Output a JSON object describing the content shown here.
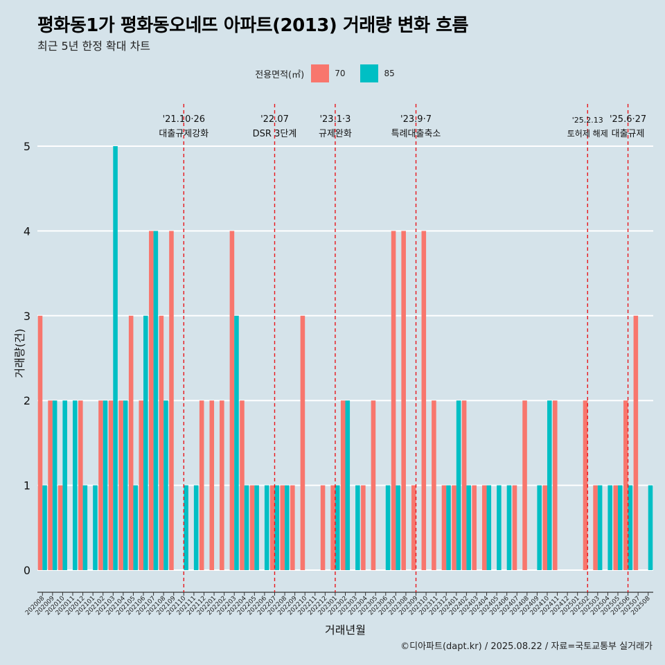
{
  "header": {
    "title": "평화동1가 평화동오네뜨 아파트(2013) 거래량 변화 흐름",
    "subtitle": "최근 5년 한정 확대 차트"
  },
  "legend": {
    "title": "전용면적(㎡)",
    "items": [
      {
        "label": "70",
        "color": "#f8766d"
      },
      {
        "label": "85",
        "color": "#00bfc4"
      }
    ]
  },
  "caption": "©디아파트(dapt.kr) / 2025.08.22 / 자료=국토교통부 실거래가",
  "chart_data": {
    "type": "bar",
    "title": "평화동1가 평화동오네뜨 아파트(2013) 거래량 변화 흐름",
    "xlabel": "거래년월",
    "ylabel": "거래량(건)",
    "ylim": [
      0,
      5
    ],
    "yticks": [
      0,
      1,
      2,
      3,
      4,
      5
    ],
    "categories": [
      "202008",
      "202009",
      "202010",
      "202011",
      "202012",
      "202101",
      "202102",
      "202103",
      "202104",
      "202105",
      "202106",
      "202107",
      "202108",
      "202109",
      "202110",
      "202111",
      "202112",
      "202201",
      "202202",
      "202203",
      "202204",
      "202205",
      "202206",
      "202207",
      "202208",
      "202209",
      "202210",
      "202211",
      "202212",
      "202301",
      "202302",
      "202303",
      "202304",
      "202305",
      "202306",
      "202307",
      "202308",
      "202309",
      "202310",
      "202311",
      "202312",
      "202401",
      "202402",
      "202403",
      "202404",
      "202405",
      "202406",
      "202407",
      "202408",
      "202409",
      "202410",
      "202411",
      "202412",
      "202501",
      "202502",
      "202503",
      "202504",
      "202505",
      "202506",
      "202507",
      "202508"
    ],
    "series": [
      {
        "name": "70",
        "color": "#f8766d",
        "values": [
          3,
          2,
          1,
          0,
          2,
          0,
          2,
          2,
          2,
          3,
          2,
          4,
          3,
          4,
          0,
          0,
          2,
          2,
          2,
          4,
          2,
          1,
          0,
          1,
          1,
          1,
          3,
          0,
          1,
          1,
          2,
          0,
          1,
          2,
          0,
          4,
          4,
          1,
          4,
          2,
          1,
          1,
          2,
          1,
          1,
          0,
          0,
          1,
          2,
          0,
          1,
          2,
          0,
          0,
          2,
          1,
          0,
          1,
          2,
          3,
          0
        ]
      },
      {
        "name": "85",
        "color": "#00bfc4",
        "values": [
          1,
          2,
          2,
          2,
          1,
          1,
          2,
          5,
          2,
          1,
          3,
          4,
          2,
          0,
          1,
          1,
          0,
          0,
          0,
          3,
          1,
          1,
          1,
          1,
          1,
          0,
          0,
          0,
          0,
          1,
          2,
          1,
          0,
          0,
          1,
          1,
          0,
          0,
          0,
          0,
          1,
          2,
          1,
          0,
          1,
          1,
          1,
          0,
          0,
          1,
          2,
          0,
          0,
          0,
          0,
          1,
          1,
          1,
          1,
          0,
          1
        ]
      }
    ],
    "annotations": [
      {
        "date": "'21.10·26",
        "label": "대출규제강화",
        "at": "202110"
      },
      {
        "date": "'22.07",
        "label": "DSR 3단계",
        "at": "202207"
      },
      {
        "date": "'23.1·3",
        "label": "규제완화",
        "at": "202301"
      },
      {
        "date": "'23.9·7",
        "label": "특례대출축소",
        "at": "202309"
      },
      {
        "date": "'25.2.13",
        "label": "토허제 해제",
        "at": "202502"
      },
      {
        "date": "'25.6·27",
        "label": "대출규제",
        "at": "202506"
      }
    ]
  }
}
